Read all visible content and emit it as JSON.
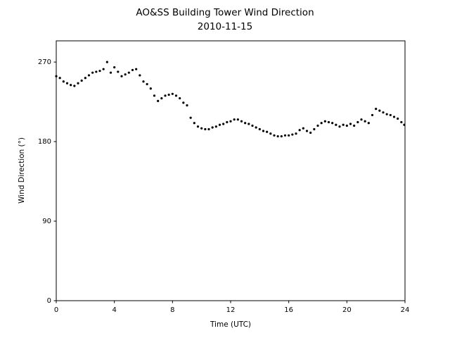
{
  "chart_data": {
    "type": "scatter",
    "title": "AO&SS Building Tower Wind Direction",
    "subtitle": "2010-11-15",
    "xlabel": "Time (UTC)",
    "ylabel": "Wind Direction (°)",
    "xlim": [
      0,
      24
    ],
    "xticks": [
      0,
      4,
      8,
      12,
      16,
      20,
      24
    ],
    "ylim": [
      0,
      294
    ],
    "yticks": [
      0,
      90,
      180,
      270
    ],
    "color": "#000000",
    "x": [
      0,
      0.25,
      0.5,
      0.75,
      1,
      1.25,
      1.5,
      1.75,
      2,
      2.25,
      2.5,
      2.75,
      3,
      3.25,
      3.5,
      3.75,
      4,
      4.25,
      4.5,
      4.75,
      5,
      5.25,
      5.5,
      5.75,
      6,
      6.25,
      6.5,
      6.75,
      7,
      7.25,
      7.5,
      7.75,
      8,
      8.25,
      8.5,
      8.75,
      9,
      9.25,
      9.5,
      9.75,
      10,
      10.25,
      10.5,
      10.75,
      11,
      11.25,
      11.5,
      11.75,
      12,
      12.25,
      12.5,
      12.75,
      13,
      13.25,
      13.5,
      13.75,
      14,
      14.25,
      14.5,
      14.75,
      15,
      15.25,
      15.5,
      15.75,
      16,
      16.25,
      16.5,
      16.75,
      17,
      17.25,
      17.5,
      17.75,
      18,
      18.25,
      18.5,
      18.75,
      19,
      19.25,
      19.5,
      19.75,
      20,
      20.25,
      20.5,
      20.75,
      21,
      21.25,
      21.5,
      21.75,
      22,
      22.25,
      22.5,
      22.75,
      23,
      23.25,
      23.5,
      23.75,
      23.95
    ],
    "values": [
      254,
      252,
      248,
      246,
      244,
      243,
      246,
      249,
      252,
      255,
      258,
      259,
      260,
      262,
      270,
      258,
      264,
      259,
      254,
      256,
      258,
      261,
      262,
      255,
      248,
      245,
      240,
      232,
      226,
      229,
      232,
      233,
      234,
      232,
      229,
      224,
      221,
      207,
      201,
      197,
      195,
      194,
      194,
      196,
      197,
      199,
      200,
      202,
      203,
      205,
      205,
      203,
      201,
      200,
      198,
      196,
      194,
      192,
      191,
      189,
      187,
      186,
      186,
      187,
      187,
      188,
      189,
      193,
      195,
      192,
      190,
      194,
      198,
      201,
      203,
      202,
      201,
      199,
      197,
      199,
      198,
      200,
      198,
      202,
      205,
      203,
      201,
      210,
      217,
      215,
      213,
      211,
      210,
      208,
      206,
      202,
      199
    ]
  }
}
